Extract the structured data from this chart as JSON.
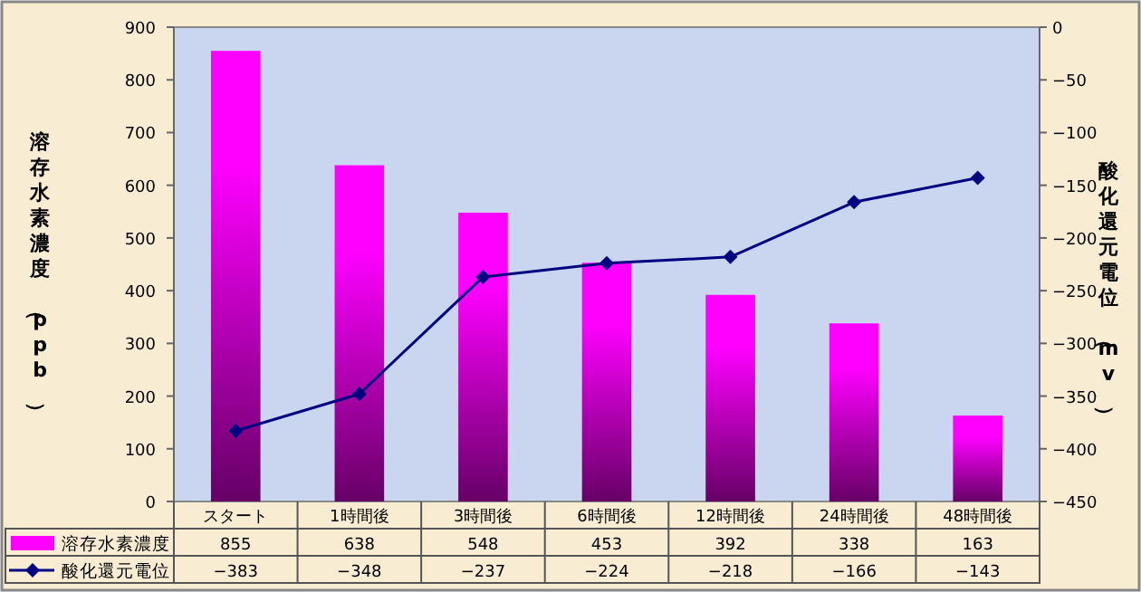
{
  "chart_data": {
    "type": "bar",
    "categories": [
      "スタート",
      "1時間後",
      "3時間後",
      "6時間後",
      "12時間後",
      "24時間後",
      "48時間後"
    ],
    "ylabel": "溶存水素濃度（ppb）",
    "y2label": "酸化還元電位（mv）",
    "series": [
      {
        "name": "溶存水素濃度",
        "color": "#ff00ff",
        "values": [
          855,
          638,
          548,
          453,
          392,
          338,
          163
        ]
      },
      {
        "name": "酸化還元電位",
        "type": "line",
        "axis": "y2",
        "color": "#000080",
        "marker": "diamond",
        "values": [
          -383,
          -348,
          -237,
          -224,
          -218,
          -166,
          -143
        ]
      }
    ],
    "ylim": [
      0,
      900
    ],
    "yticks": [
      0,
      100,
      200,
      300,
      400,
      500,
      600,
      700,
      800,
      900
    ],
    "y2lim": [
      -450,
      0
    ],
    "y2ticks": [
      -450,
      -400,
      -350,
      -300,
      -250,
      -200,
      -150,
      -100,
      -50,
      0
    ],
    "data_labels": true,
    "legend": "bottom",
    "grid": false
  }
}
